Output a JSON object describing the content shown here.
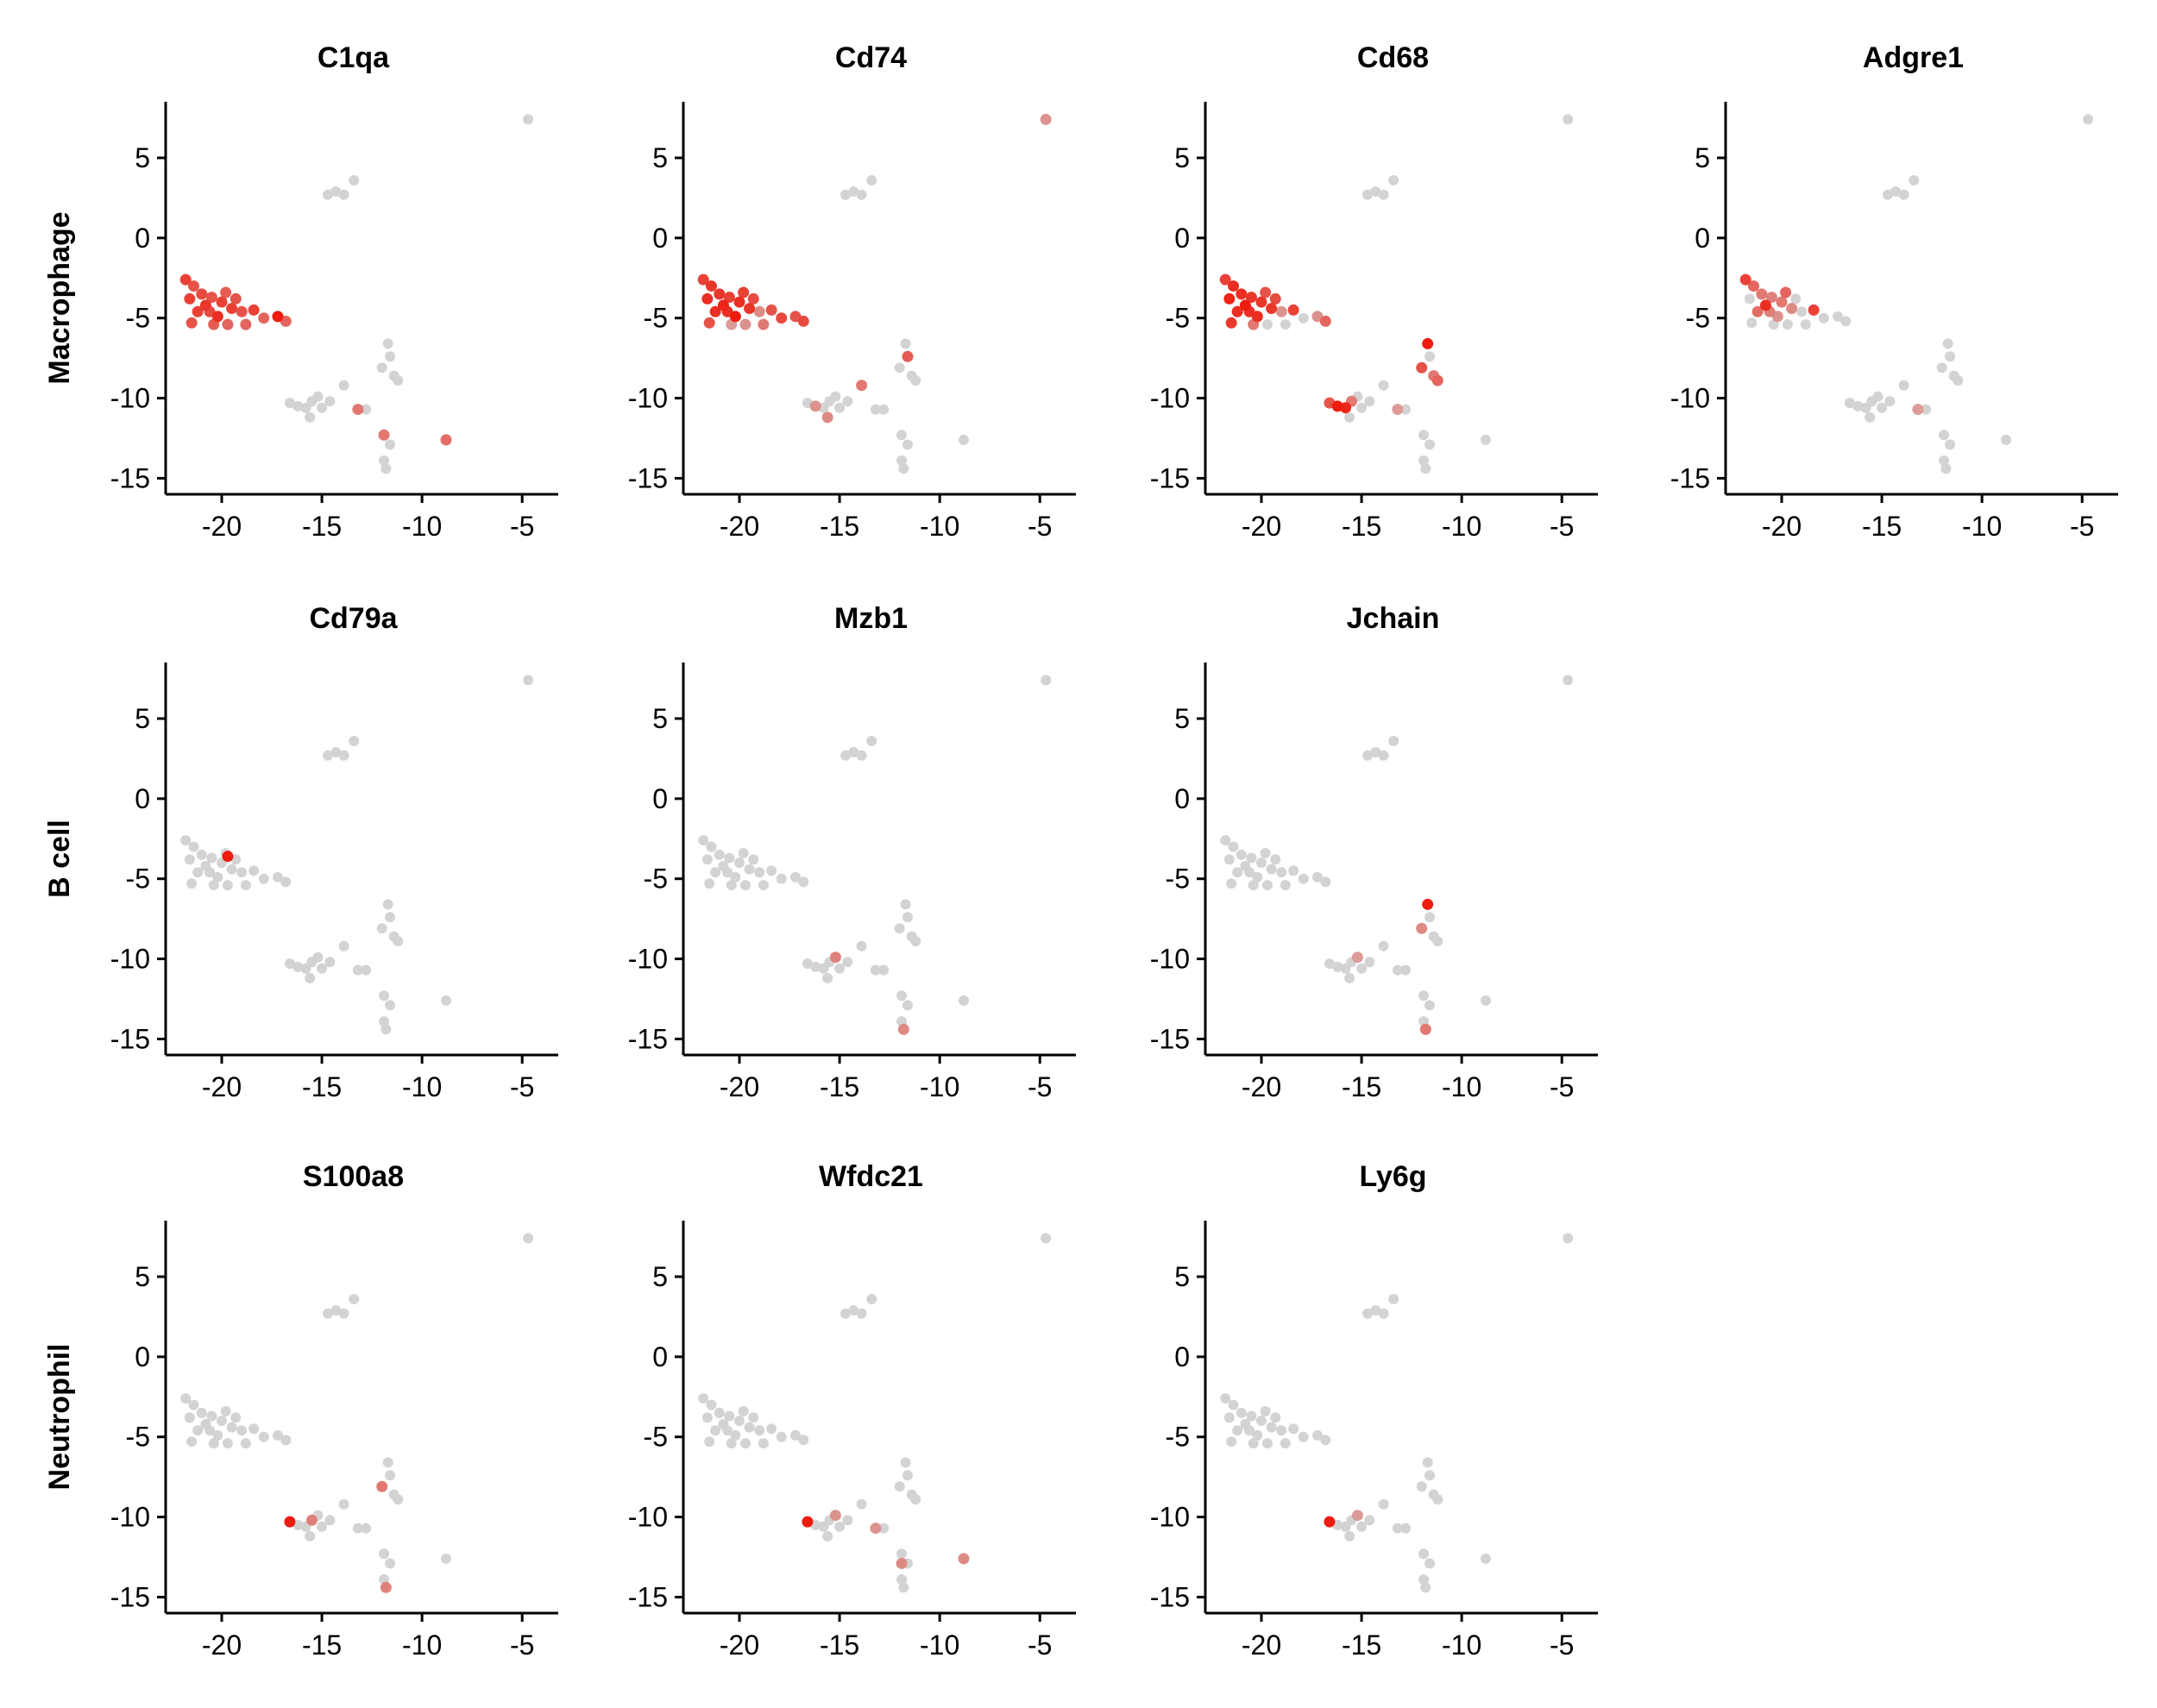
{
  "colors": {
    "low": "#d3d3d3",
    "high": "#ee1c0e",
    "axis": "#000000"
  },
  "rows": [
    {
      "label": "Macrophage",
      "panels": [
        "C1qa",
        "Cd74",
        "Cd68",
        "Adgre1"
      ]
    },
    {
      "label": "B cell",
      "panels": [
        "Cd79a",
        "Mzb1",
        "Jchain"
      ]
    },
    {
      "label": "Neutrophil",
      "panels": [
        "S100a8",
        "Wfdc21",
        "Ly6g"
      ]
    }
  ],
  "chart_data": {
    "type": "scatter",
    "xlim": [
      -22.8,
      -3.2
    ],
    "ylim": [
      -16,
      8.5
    ],
    "xticks": [
      -20,
      -15,
      -10,
      -5
    ],
    "yticks": [
      5,
      0,
      -5,
      -10,
      -15
    ],
    "xtick_labels": [
      "-20",
      "-15",
      "-10",
      "-5"
    ],
    "ytick_labels": [
      "5",
      "0",
      "-5",
      "-10",
      "-15"
    ],
    "cells": [
      [
        -21.8,
        -2.6
      ],
      [
        -21.4,
        -3.0
      ],
      [
        -21.6,
        -3.8
      ],
      [
        -21.0,
        -3.5
      ],
      [
        -20.8,
        -4.2
      ],
      [
        -21.2,
        -4.6
      ],
      [
        -20.5,
        -3.7
      ],
      [
        -20.2,
        -4.9
      ],
      [
        -20.0,
        -4.0
      ],
      [
        -19.8,
        -3.4
      ],
      [
        -19.5,
        -4.4
      ],
      [
        -19.3,
        -3.8
      ],
      [
        -20.6,
        -4.6
      ],
      [
        -21.5,
        -5.3
      ],
      [
        -20.4,
        -5.4
      ],
      [
        -19.0,
        -4.6
      ],
      [
        -18.4,
        -4.5
      ],
      [
        -17.9,
        -5.0
      ],
      [
        -17.2,
        -4.9
      ],
      [
        -16.8,
        -5.2
      ],
      [
        -19.7,
        -5.4
      ],
      [
        -18.8,
        -5.4
      ],
      [
        -14.7,
        2.7
      ],
      [
        -14.3,
        2.9
      ],
      [
        -13.9,
        2.7
      ],
      [
        -13.4,
        3.6
      ],
      [
        -4.7,
        7.4
      ],
      [
        -16.6,
        -10.3
      ],
      [
        -16.2,
        -10.5
      ],
      [
        -15.8,
        -10.6
      ],
      [
        -15.5,
        -10.2
      ],
      [
        -15.2,
        -9.9
      ],
      [
        -15.6,
        -11.2
      ],
      [
        -15.0,
        -10.6
      ],
      [
        -14.6,
        -10.2
      ],
      [
        -13.9,
        -9.2
      ],
      [
        -13.2,
        -10.7
      ],
      [
        -12.8,
        -10.7
      ],
      [
        -11.7,
        -6.6
      ],
      [
        -11.6,
        -7.4
      ],
      [
        -12.0,
        -8.1
      ],
      [
        -11.4,
        -8.6
      ],
      [
        -11.2,
        -8.9
      ],
      [
        -11.9,
        -12.3
      ],
      [
        -11.6,
        -12.9
      ],
      [
        -11.9,
        -13.9
      ],
      [
        -11.8,
        -14.4
      ],
      [
        -8.8,
        -12.6
      ]
    ],
    "series": [
      {
        "name": "C1qa",
        "highlights": [
          [
            -21.8,
            -2.6,
            0.8
          ],
          [
            -21.4,
            -3.0,
            0.7
          ],
          [
            -21.6,
            -3.8,
            0.8
          ],
          [
            -21.0,
            -3.5,
            0.75
          ],
          [
            -20.8,
            -4.2,
            0.85
          ],
          [
            -21.2,
            -4.6,
            0.8
          ],
          [
            -20.5,
            -3.7,
            0.7
          ],
          [
            -20.2,
            -4.9,
            0.9
          ],
          [
            -20.0,
            -4.0,
            0.8
          ],
          [
            -19.8,
            -3.4,
            0.65
          ],
          [
            -19.5,
            -4.4,
            0.8
          ],
          [
            -19.3,
            -3.8,
            0.7
          ],
          [
            -20.6,
            -4.6,
            0.75
          ],
          [
            -21.5,
            -5.3,
            0.7
          ],
          [
            -20.4,
            -5.4,
            0.65
          ],
          [
            -19.0,
            -4.6,
            0.7
          ],
          [
            -18.4,
            -4.5,
            0.8
          ],
          [
            -17.9,
            -5.0,
            0.6
          ],
          [
            -17.2,
            -4.9,
            1.0
          ],
          [
            -16.8,
            -5.2,
            0.6
          ],
          [
            -19.7,
            -5.4,
            0.6
          ],
          [
            -18.8,
            -5.4,
            0.6
          ],
          [
            -13.2,
            -10.7,
            0.5
          ],
          [
            -11.9,
            -12.3,
            0.5
          ],
          [
            -8.8,
            -12.6,
            0.55
          ]
        ]
      },
      {
        "name": "Cd74",
        "highlights": [
          [
            -21.8,
            -2.6,
            0.8
          ],
          [
            -21.4,
            -3.0,
            0.85
          ],
          [
            -21.6,
            -3.8,
            0.9
          ],
          [
            -21.0,
            -3.5,
            0.85
          ],
          [
            -20.8,
            -4.2,
            0.95
          ],
          [
            -21.2,
            -4.6,
            0.9
          ],
          [
            -20.5,
            -3.7,
            0.8
          ],
          [
            -20.2,
            -4.9,
            1.0
          ],
          [
            -20.0,
            -4.0,
            0.9
          ],
          [
            -19.8,
            -3.4,
            0.8
          ],
          [
            -19.5,
            -4.4,
            0.85
          ],
          [
            -19.3,
            -3.8,
            0.75
          ],
          [
            -20.6,
            -4.6,
            0.9
          ],
          [
            -21.5,
            -5.3,
            0.7
          ],
          [
            -20.4,
            -5.4,
            0.3
          ],
          [
            -19.0,
            -4.6,
            0.4
          ],
          [
            -18.4,
            -4.5,
            0.7
          ],
          [
            -17.9,
            -5.0,
            0.75
          ],
          [
            -17.2,
            -4.9,
            0.7
          ],
          [
            -16.8,
            -5.2,
            0.75
          ],
          [
            -19.7,
            -5.4,
            0.35
          ],
          [
            -18.8,
            -5.4,
            0.5
          ],
          [
            -16.2,
            -10.5,
            0.35
          ],
          [
            -15.6,
            -11.2,
            0.4
          ],
          [
            -13.9,
            -9.2,
            0.5
          ],
          [
            -11.6,
            -7.4,
            0.65
          ],
          [
            -4.7,
            7.4,
            0.35
          ]
        ]
      },
      {
        "name": "Cd68",
        "highlights": [
          [
            -21.8,
            -2.6,
            0.8
          ],
          [
            -21.4,
            -3.0,
            0.9
          ],
          [
            -21.6,
            -3.8,
            0.95
          ],
          [
            -21.0,
            -3.5,
            0.9
          ],
          [
            -20.8,
            -4.2,
            1.0
          ],
          [
            -21.2,
            -4.6,
            0.9
          ],
          [
            -20.5,
            -3.7,
            0.85
          ],
          [
            -20.2,
            -4.9,
            0.9
          ],
          [
            -20.0,
            -4.0,
            0.85
          ],
          [
            -19.8,
            -3.4,
            0.7
          ],
          [
            -19.5,
            -4.4,
            0.85
          ],
          [
            -19.3,
            -3.8,
            0.75
          ],
          [
            -20.6,
            -4.6,
            0.9
          ],
          [
            -21.5,
            -5.3,
            0.85
          ],
          [
            -20.4,
            -5.4,
            0.5
          ],
          [
            -19.0,
            -4.6,
            0.35
          ],
          [
            -18.4,
            -4.5,
            0.8
          ],
          [
            -17.2,
            -4.9,
            0.35
          ],
          [
            -16.8,
            -5.2,
            0.6
          ],
          [
            -16.6,
            -10.3,
            0.7
          ],
          [
            -16.2,
            -10.5,
            1.0
          ],
          [
            -15.8,
            -10.6,
            0.95
          ],
          [
            -15.5,
            -10.2,
            0.5
          ],
          [
            -13.2,
            -10.7,
            0.3
          ],
          [
            -11.7,
            -6.6,
            1.0
          ],
          [
            -11.2,
            -8.9,
            0.6
          ],
          [
            -12.0,
            -8.1,
            0.7
          ],
          [
            -11.4,
            -8.6,
            0.5
          ]
        ]
      },
      {
        "name": "Adgre1",
        "highlights": [
          [
            -21.8,
            -2.6,
            0.8
          ],
          [
            -21.4,
            -3.0,
            0.6
          ],
          [
            -21.0,
            -3.5,
            0.5
          ],
          [
            -20.8,
            -4.2,
            0.9
          ],
          [
            -21.2,
            -4.6,
            0.55
          ],
          [
            -20.5,
            -3.7,
            0.45
          ],
          [
            -20.2,
            -4.9,
            0.35
          ],
          [
            -20.0,
            -4.0,
            0.5
          ],
          [
            -19.8,
            -3.4,
            0.6
          ],
          [
            -19.5,
            -4.4,
            0.4
          ],
          [
            -20.6,
            -4.6,
            0.45
          ],
          [
            -18.4,
            -4.5,
            0.8
          ],
          [
            -13.2,
            -10.7,
            0.3
          ]
        ]
      },
      {
        "name": "Cd79a",
        "highlights": [
          [
            -19.7,
            -3.6,
            1.0
          ]
        ]
      },
      {
        "name": "Mzb1",
        "highlights": [
          [
            -15.2,
            -9.9,
            0.45
          ],
          [
            -11.8,
            -14.4,
            0.4
          ]
        ]
      },
      {
        "name": "Jchain",
        "highlights": [
          [
            -11.7,
            -6.6,
            1.0
          ],
          [
            -12.0,
            -8.1,
            0.4
          ],
          [
            -15.2,
            -9.9,
            0.3
          ],
          [
            -11.8,
            -14.4,
            0.5
          ]
        ]
      },
      {
        "name": "S100a8",
        "highlights": [
          [
            -16.6,
            -10.3,
            1.0
          ],
          [
            -15.5,
            -10.2,
            0.45
          ],
          [
            -12.0,
            -8.1,
            0.5
          ],
          [
            -11.8,
            -14.4,
            0.45
          ]
        ]
      },
      {
        "name": "Wfdc21",
        "highlights": [
          [
            -16.6,
            -10.3,
            1.0
          ],
          [
            -15.2,
            -9.9,
            0.35
          ],
          [
            -13.2,
            -10.7,
            0.35
          ],
          [
            -11.9,
            -12.9,
            0.4
          ],
          [
            -8.8,
            -12.6,
            0.4
          ]
        ]
      },
      {
        "name": "Ly6g",
        "highlights": [
          [
            -16.6,
            -10.3,
            1.0
          ],
          [
            -15.2,
            -9.9,
            0.3
          ]
        ]
      }
    ]
  }
}
